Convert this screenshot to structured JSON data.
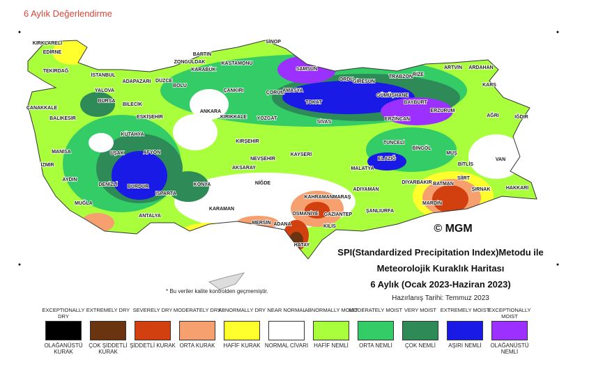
{
  "header": {
    "title": "6 Aylık Değerlendirme"
  },
  "map": {
    "cities": [
      "KIRKLARELİ",
      "EDİRNE",
      "TEKİRDAĞ",
      "İSTANBUL",
      "ÇANAKKALE",
      "BALIKESİR",
      "BURSA",
      "YALOVA",
      "ADAPAZARI",
      "DÜZCE",
      "BOLU",
      "BİLECİK",
      "ESKİŞEHİR",
      "KÜTAHYA",
      "MANİSA",
      "İZMİR",
      "UŞAK",
      "AFYON",
      "DENİZLİ",
      "AYDIN",
      "MUĞLA",
      "BURDUR",
      "ISPARTA",
      "ANTALYA",
      "KONYA",
      "KARAMAN",
      "BARTIN",
      "ZONGULDAK",
      "KARABÜK",
      "KASTAMONU",
      "SİNOP",
      "ÇANKIRI",
      "ÇORUM",
      "ANKARA",
      "KIRIKKALE",
      "YOZGAT",
      "KIRŞEHİR",
      "NEVŞEHİR",
      "AKSARAY",
      "NİĞDE",
      "KAYSERİ",
      "SAMSUN",
      "AMASYA",
      "TOKAT",
      "ORDU",
      "GİRESUN",
      "TRABZON",
      "RİZE",
      "ARTVİN",
      "ARDAHAN",
      "GÜMÜŞHANE",
      "BAYBURT",
      "ERZİNCAN",
      "ERZURUM",
      "KARS",
      "AĞRI",
      "IĞDIR",
      "SİVAS",
      "TUNCELİ",
      "BİNGÖL",
      "ELAZIĞ",
      "MALATYA",
      "MUŞ",
      "BİTLİS",
      "VAN",
      "HAKKARİ",
      "ŞIRNAK",
      "SİİRT",
      "BATMAN",
      "DİYARBAKIR",
      "MARDİN",
      "ADIYAMAN",
      "ŞANLIURFA",
      "GAZİANTEP",
      "KAHRAMANMARAŞ",
      "OSMANİYE",
      "KİLİS",
      "ADANA",
      "MERSİN",
      "HATAY"
    ],
    "copyright": "© MGM",
    "note": "* Bu veriler kalite kontrolden geçmemiştir."
  },
  "caption": {
    "lines": [
      "SPI(Standardized Precipitation Index)Metodu ile",
      "Meteorolojik Kuraklık Haritası",
      "6 Aylık (Ocak 2023-Haziran 2023)"
    ],
    "date": "Hazırlanış Tarihi: Temmuz 2023"
  },
  "legend": [
    {
      "label_en": "EXCEPTIONALLY DRY",
      "color": "#000000",
      "label_tr": "OLAĞANÜSTÜ KURAK"
    },
    {
      "label_en": "EXTREMELY DRY",
      "color": "#6b3410",
      "label_tr": "ÇOK ŞİDDETLİ KURAK"
    },
    {
      "label_en": "SEVERELY DRY",
      "color": "#d2400f",
      "label_tr": "ŞİDDETLİ KURAK"
    },
    {
      "label_en": "MODERATELY DRY",
      "color": "#f5a06e",
      "label_tr": "ORTA KURAK"
    },
    {
      "label_en": "ABNORMALLY DRY",
      "color": "#ffff2e",
      "label_tr": "HAFİF KURAK"
    },
    {
      "label_en": "NEAR NORMAL",
      "color": "#ffffff",
      "label_tr": "NORMAL CİVARI"
    },
    {
      "label_en": "ABNORMALLY MOIST",
      "color": "#aaff3c",
      "label_tr": "HAFİF NEMLİ"
    },
    {
      "label_en": "MODERATELY MOIST",
      "color": "#33cc66",
      "label_tr": "ORTA NEMLİ"
    },
    {
      "label_en": "VERY MOIST",
      "color": "#2e8b57",
      "label_tr": "ÇOK NEMLİ"
    },
    {
      "label_en": "EXTREMELY MOIST",
      "color": "#1a1ae6",
      "label_tr": "AŞIRI NEMLİ"
    },
    {
      "label_en": "EXCEPTIONALLY MOIST",
      "color": "#9b30ff",
      "label_tr": "OLAĞANÜSTÜ NEMLİ"
    }
  ]
}
